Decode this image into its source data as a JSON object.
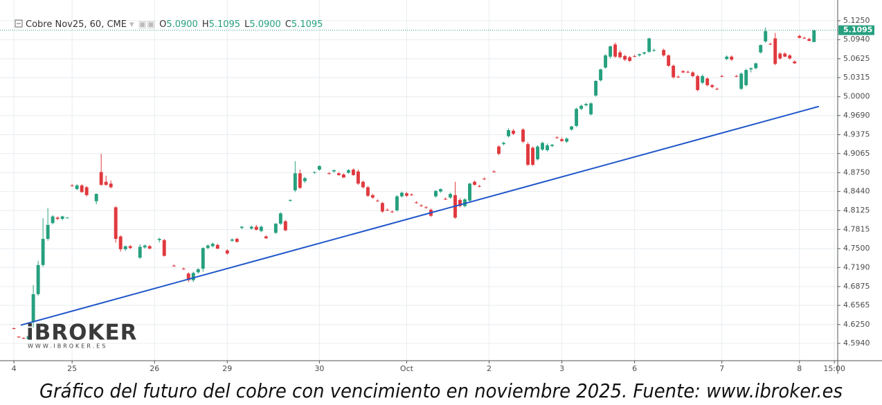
{
  "chart_data": {
    "type": "candlestick",
    "title": "Cobre Nov25, 60, CME",
    "ohlc_legend": [
      {
        "label": "O",
        "value": "5.0900"
      },
      {
        "label": "H",
        "value": "5.1095"
      },
      {
        "label": "L",
        "value": "5.0900"
      },
      {
        "label": "C",
        "value": "5.1095"
      }
    ],
    "up_color": "#26a07f",
    "down_color": "#e0393e",
    "grid": true,
    "xlim": [
      -0.3,
      169.6
    ],
    "ylim": [
      4.5655,
      5.1592
    ],
    "xticks": [
      {
        "value": 0,
        "label": "4"
      },
      {
        "value": 12,
        "label": "25"
      },
      {
        "value": 29,
        "label": "26"
      },
      {
        "value": 44,
        "label": "29"
      },
      {
        "value": 63,
        "label": "30"
      },
      {
        "value": 81,
        "label": "Oct"
      },
      {
        "value": 98,
        "label": "2"
      },
      {
        "value": 113,
        "label": "3"
      },
      {
        "value": 128,
        "label": "6"
      },
      {
        "value": 146,
        "label": "7"
      },
      {
        "value": 162,
        "label": "8"
      },
      {
        "value": 169.2,
        "label": "15:00"
      }
    ],
    "yticks": [
      {
        "value": 5.125,
        "label": "5.1250"
      },
      {
        "value": 5.094,
        "label": "5.0940"
      },
      {
        "value": 5.0625,
        "label": "5.0625"
      },
      {
        "value": 5.0315,
        "label": "5.0315"
      },
      {
        "value": 5.0,
        "label": "5.0000"
      },
      {
        "value": 4.969,
        "label": "4.9690"
      },
      {
        "value": 4.9375,
        "label": "4.9375"
      },
      {
        "value": 4.9065,
        "label": "4.9065"
      },
      {
        "value": 4.875,
        "label": "4.8750"
      },
      {
        "value": 4.844,
        "label": "4.8440"
      },
      {
        "value": 4.8125,
        "label": "4.8125"
      },
      {
        "value": 4.7815,
        "label": "4.7815"
      },
      {
        "value": 4.75,
        "label": "4.7500"
      },
      {
        "value": 4.719,
        "label": "4.7190"
      },
      {
        "value": 4.6875,
        "label": "4.6875"
      },
      {
        "value": 4.6565,
        "label": "4.6565"
      },
      {
        "value": 4.625,
        "label": "4.6250"
      },
      {
        "value": 4.594,
        "label": "4.5940"
      }
    ],
    "x": [
      0,
      1,
      2,
      3,
      4,
      5,
      6,
      7,
      8,
      9,
      10,
      11,
      12,
      13,
      14,
      15,
      17,
      18,
      19,
      20,
      21,
      22,
      23,
      24,
      26,
      27,
      28,
      30,
      31,
      33,
      35,
      36,
      37,
      38,
      39,
      40,
      41,
      42,
      44,
      45,
      46,
      47,
      49,
      50,
      51,
      52,
      54,
      55,
      56,
      57,
      58,
      59,
      60,
      62,
      63,
      65,
      66,
      67,
      68,
      69,
      70,
      71,
      72,
      73,
      74,
      75,
      76,
      77,
      78,
      79,
      80,
      81,
      82,
      83,
      84,
      85,
      86,
      87,
      88,
      89,
      90,
      91,
      92,
      93,
      94,
      95,
      96,
      97,
      99,
      100,
      101,
      102,
      103,
      105,
      106,
      107,
      108,
      109,
      110,
      111,
      112,
      113,
      114,
      115,
      116,
      117,
      118,
      119,
      120,
      121,
      122,
      123,
      124,
      125,
      126,
      127,
      128,
      129,
      130,
      131,
      132,
      134,
      135,
      136,
      137,
      138,
      139,
      140,
      141,
      142,
      143,
      144,
      145,
      146,
      147,
      148,
      149,
      150,
      151,
      152,
      153,
      154,
      155,
      156,
      157,
      158,
      159,
      160,
      161,
      162,
      163,
      164,
      165
    ],
    "ohlc": [
      [
        4.619,
        4.62,
        4.617,
        4.618
      ],
      [
        4.605,
        4.606,
        4.603,
        4.604
      ],
      [
        4.603,
        4.604,
        4.601,
        4.602
      ],
      [
        4.601,
        4.607,
        4.6,
        4.606
      ],
      [
        4.629,
        4.69,
        4.62,
        4.675
      ],
      [
        4.675,
        4.73,
        4.672,
        4.723
      ],
      [
        4.723,
        4.8,
        4.72,
        4.766
      ],
      [
        4.766,
        4.817,
        4.763,
        4.789
      ],
      [
        4.792,
        4.805,
        4.79,
        4.803
      ],
      [
        4.801,
        4.803,
        4.797,
        4.799
      ],
      [
        4.799,
        4.804,
        4.797,
        4.803
      ],
      [
        4.801,
        4.802,
        4.8,
        4.801
      ],
      [
        4.854,
        4.856,
        4.852,
        4.853
      ],
      [
        4.848,
        4.856,
        4.846,
        4.854
      ],
      [
        4.854,
        4.856,
        4.842,
        4.843
      ],
      [
        4.851,
        4.853,
        4.836,
        4.838
      ],
      [
        4.828,
        4.841,
        4.823,
        4.84
      ],
      [
        4.876,
        4.906,
        4.853,
        4.855
      ],
      [
        4.86,
        4.87,
        4.853,
        4.855
      ],
      [
        4.857,
        4.862,
        4.849,
        4.851
      ],
      [
        4.818,
        4.82,
        4.76,
        4.766
      ],
      [
        4.77,
        4.772,
        4.745,
        4.749
      ],
      [
        4.749,
        4.755,
        4.746,
        4.754
      ],
      [
        4.754,
        4.756,
        4.749,
        4.751
      ],
      [
        4.735,
        4.757,
        4.733,
        4.753
      ],
      [
        4.752,
        4.757,
        4.75,
        4.755
      ],
      [
        4.754,
        4.756,
        4.749,
        4.75
      ],
      [
        4.764,
        4.768,
        4.76,
        4.766
      ],
      [
        4.764,
        4.766,
        4.737,
        4.738
      ],
      [
        4.722,
        4.724,
        4.72,
        4.721
      ],
      [
        4.717,
        4.719,
        4.715,
        4.716
      ],
      [
        4.709,
        4.711,
        4.695,
        4.698
      ],
      [
        4.698,
        4.712,
        4.695,
        4.71
      ],
      [
        4.711,
        4.718,
        4.709,
        4.716
      ],
      [
        4.717,
        4.752,
        4.712,
        4.751
      ],
      [
        4.751,
        4.757,
        4.749,
        4.755
      ],
      [
        4.754,
        4.76,
        4.752,
        4.758
      ],
      [
        4.756,
        4.758,
        4.749,
        4.75
      ],
      [
        4.747,
        4.749,
        4.74,
        4.742
      ],
      [
        4.763,
        4.767,
        4.761,
        4.765
      ],
      [
        4.766,
        4.768,
        4.76,
        4.761
      ],
      [
        4.784,
        4.787,
        4.782,
        4.786
      ],
      [
        4.783,
        4.788,
        4.781,
        4.786
      ],
      [
        4.786,
        4.789,
        4.78,
        4.781
      ],
      [
        4.779,
        4.788,
        4.777,
        4.786
      ],
      [
        4.77,
        4.772,
        4.766,
        4.767
      ],
      [
        4.776,
        4.792,
        4.774,
        4.791
      ],
      [
        4.791,
        4.81,
        4.789,
        4.808
      ],
      [
        4.795,
        4.797,
        4.779,
        4.78
      ],
      [
        4.829,
        4.831,
        4.827,
        4.83
      ],
      [
        4.846,
        4.894,
        4.843,
        4.874
      ],
      [
        4.874,
        4.88,
        4.848,
        4.85
      ],
      [
        4.861,
        4.868,
        4.858,
        4.866
      ],
      [
        4.875,
        4.877,
        4.873,
        4.876
      ],
      [
        4.88,
        4.887,
        4.878,
        4.886
      ],
      [
        4.874,
        4.876,
        4.872,
        4.873
      ],
      [
        4.877,
        4.88,
        4.875,
        4.879
      ],
      [
        4.874,
        4.876,
        4.87,
        4.871
      ],
      [
        4.872,
        4.874,
        4.866,
        4.867
      ],
      [
        4.875,
        4.881,
        4.873,
        4.879
      ],
      [
        4.88,
        4.882,
        4.87,
        4.871
      ],
      [
        4.877,
        4.88,
        4.855,
        4.857
      ],
      [
        4.86,
        4.862,
        4.849,
        4.851
      ],
      [
        4.851,
        4.853,
        4.835,
        4.837
      ],
      [
        4.838,
        4.84,
        4.832,
        4.834
      ],
      [
        4.829,
        4.831,
        4.827,
        4.828
      ],
      [
        4.825,
        4.827,
        4.809,
        4.811
      ],
      [
        4.814,
        4.816,
        4.812,
        4.813
      ],
      [
        4.811,
        4.813,
        4.809,
        4.81
      ],
      [
        4.813,
        4.838,
        4.811,
        4.836
      ],
      [
        4.836,
        4.844,
        4.834,
        4.842
      ],
      [
        4.841,
        4.843,
        4.835,
        4.837
      ],
      [
        4.839,
        4.841,
        4.837,
        4.838
      ],
      [
        4.826,
        4.828,
        4.824,
        4.825
      ],
      [
        4.821,
        4.823,
        4.819,
        4.82
      ],
      [
        4.818,
        4.82,
        4.816,
        4.817
      ],
      [
        4.814,
        4.816,
        4.802,
        4.804
      ],
      [
        4.836,
        4.846,
        4.834,
        4.845
      ],
      [
        4.844,
        4.849,
        4.842,
        4.848
      ],
      [
        4.832,
        4.834,
        4.83,
        4.831
      ],
      [
        4.834,
        4.842,
        4.832,
        4.84
      ],
      [
        4.838,
        4.86,
        4.799,
        4.801
      ],
      [
        4.83,
        4.833,
        4.818,
        4.82
      ],
      [
        4.82,
        4.833,
        4.818,
        4.831
      ],
      [
        4.829,
        4.858,
        4.827,
        4.857
      ],
      [
        4.86,
        4.862,
        4.854,
        4.855
      ],
      [
        4.853,
        4.855,
        4.851,
        4.852
      ],
      [
        4.865,
        4.867,
        4.863,
        4.864
      ],
      [
        4.877,
        4.879,
        4.875,
        4.876
      ],
      [
        4.918,
        4.92,
        4.904,
        4.906
      ],
      [
        4.922,
        4.926,
        4.92,
        4.924
      ],
      [
        4.935,
        4.948,
        4.933,
        4.945
      ],
      [
        4.944,
        4.947,
        4.937,
        4.939
      ],
      [
        4.946,
        4.948,
        4.924,
        4.926
      ],
      [
        4.922,
        4.925,
        4.886,
        4.888
      ],
      [
        4.916,
        4.918,
        4.886,
        4.888
      ],
      [
        4.897,
        4.92,
        4.895,
        4.918
      ],
      [
        4.913,
        4.926,
        4.911,
        4.924
      ],
      [
        4.912,
        4.923,
        4.91,
        4.92
      ],
      [
        4.919,
        4.922,
        4.917,
        4.921
      ],
      [
        4.933,
        4.935,
        4.931,
        4.932
      ],
      [
        4.93,
        4.933,
        4.926,
        4.927
      ],
      [
        4.926,
        4.933,
        4.924,
        4.931
      ],
      [
        4.946,
        4.952,
        4.944,
        4.951
      ],
      [
        4.952,
        4.982,
        4.95,
        4.98
      ],
      [
        4.98,
        4.987,
        4.978,
        4.985
      ],
      [
        4.986,
        4.99,
        4.984,
        4.988
      ],
      [
        4.971,
        4.991,
        4.969,
        4.989
      ],
      [
        5.002,
        5.027,
        5.0,
        5.026
      ],
      [
        5.027,
        5.046,
        5.025,
        5.045
      ],
      [
        5.048,
        5.07,
        5.046,
        5.068
      ],
      [
        5.066,
        5.084,
        5.063,
        5.083
      ],
      [
        5.086,
        5.089,
        5.064,
        5.066
      ],
      [
        5.073,
        5.076,
        5.063,
        5.065
      ],
      [
        5.067,
        5.069,
        5.059,
        5.061
      ],
      [
        5.065,
        5.067,
        5.057,
        5.059
      ],
      [
        5.067,
        5.069,
        5.065,
        5.066
      ],
      [
        5.068,
        5.071,
        5.066,
        5.07
      ],
      [
        5.071,
        5.074,
        5.069,
        5.073
      ],
      [
        5.074,
        5.097,
        5.072,
        5.096
      ],
      [
        5.076,
        5.079,
        5.074,
        5.077
      ],
      [
        5.077,
        5.079,
        5.066,
        5.068
      ],
      [
        5.068,
        5.07,
        5.049,
        5.051
      ],
      [
        5.051,
        5.053,
        5.03,
        5.032
      ],
      [
        5.033,
        5.035,
        5.031,
        5.032
      ],
      [
        5.042,
        5.044,
        5.039,
        5.04
      ],
      [
        5.041,
        5.043,
        5.039,
        5.04
      ],
      [
        5.04,
        5.042,
        5.032,
        5.034
      ],
      [
        5.034,
        5.036,
        5.009,
        5.011
      ],
      [
        5.023,
        5.037,
        5.021,
        5.034
      ],
      [
        5.03,
        5.032,
        5.017,
        5.019
      ],
      [
        5.019,
        5.021,
        5.014,
        5.016
      ],
      [
        5.013,
        5.015,
        5.011,
        5.012
      ],
      [
        5.034,
        5.036,
        5.032,
        5.033
      ],
      [
        5.062,
        5.068,
        5.06,
        5.066
      ],
      [
        5.066,
        5.068,
        5.059,
        5.061
      ],
      [
        5.034,
        5.036,
        5.032,
        5.033
      ],
      [
        5.013,
        5.04,
        5.011,
        5.038
      ],
      [
        5.019,
        5.046,
        5.017,
        5.044
      ],
      [
        5.045,
        5.048,
        5.04,
        5.047
      ],
      [
        5.047,
        5.056,
        5.045,
        5.055
      ],
      [
        5.073,
        5.086,
        5.071,
        5.085
      ],
      [
        5.091,
        5.114,
        5.089,
        5.108
      ],
      [
        5.087,
        5.089,
        5.085,
        5.086
      ],
      [
        5.096,
        5.105,
        5.052,
        5.054
      ],
      [
        5.071,
        5.073,
        5.061,
        5.063
      ],
      [
        5.071,
        5.073,
        5.065,
        5.066
      ],
      [
        5.068,
        5.07,
        5.061,
        5.063
      ],
      [
        5.058,
        5.06,
        5.054,
        5.055
      ],
      [
        5.1,
        5.102,
        5.096,
        5.097
      ],
      [
        5.097,
        5.099,
        5.095,
        5.096
      ],
      [
        5.095,
        5.097,
        5.091,
        5.092
      ],
      [
        5.09,
        5.1095,
        5.09,
        5.1095
      ]
    ],
    "last_price_color": "#26a07f",
    "trendline": {
      "x": [
        1.4,
        166.0
      ],
      "values": [
        4.624,
        4.984
      ],
      "color": "#1f56c9"
    }
  },
  "watermark": {
    "brand": "iBROKER",
    "url": "WWW.IBROKER.ES"
  },
  "caption": "Gráfico del futuro del cobre con vencimiento en noviembre 2025. Fuente: www.ibroker.es"
}
